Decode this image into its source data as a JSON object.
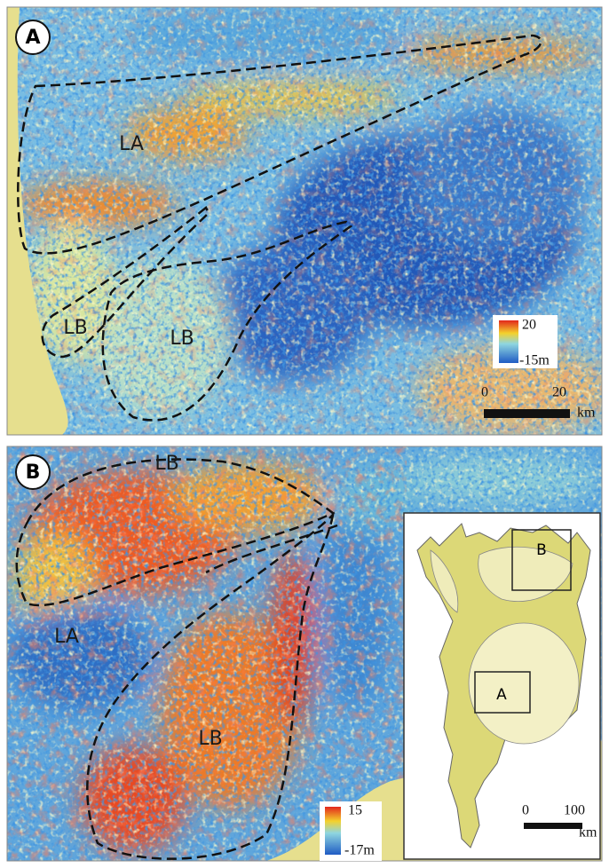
{
  "panels": [
    {
      "label": "A",
      "regions": [
        "LA",
        "LB",
        "LB"
      ],
      "colorbar": {
        "max": "20",
        "min": "-15m"
      },
      "scalebar": {
        "start": "0",
        "end": "20",
        "unit": "km"
      }
    },
    {
      "label": "B",
      "regions": [
        "LB",
        "LA",
        "LB"
      ],
      "colorbar": {
        "max": "15",
        "min": "-17m"
      },
      "inset": {
        "boxes": [
          "B",
          "A"
        ],
        "scalebar": {
          "start": "0",
          "end": "100",
          "unit": "km"
        }
      }
    }
  ]
}
